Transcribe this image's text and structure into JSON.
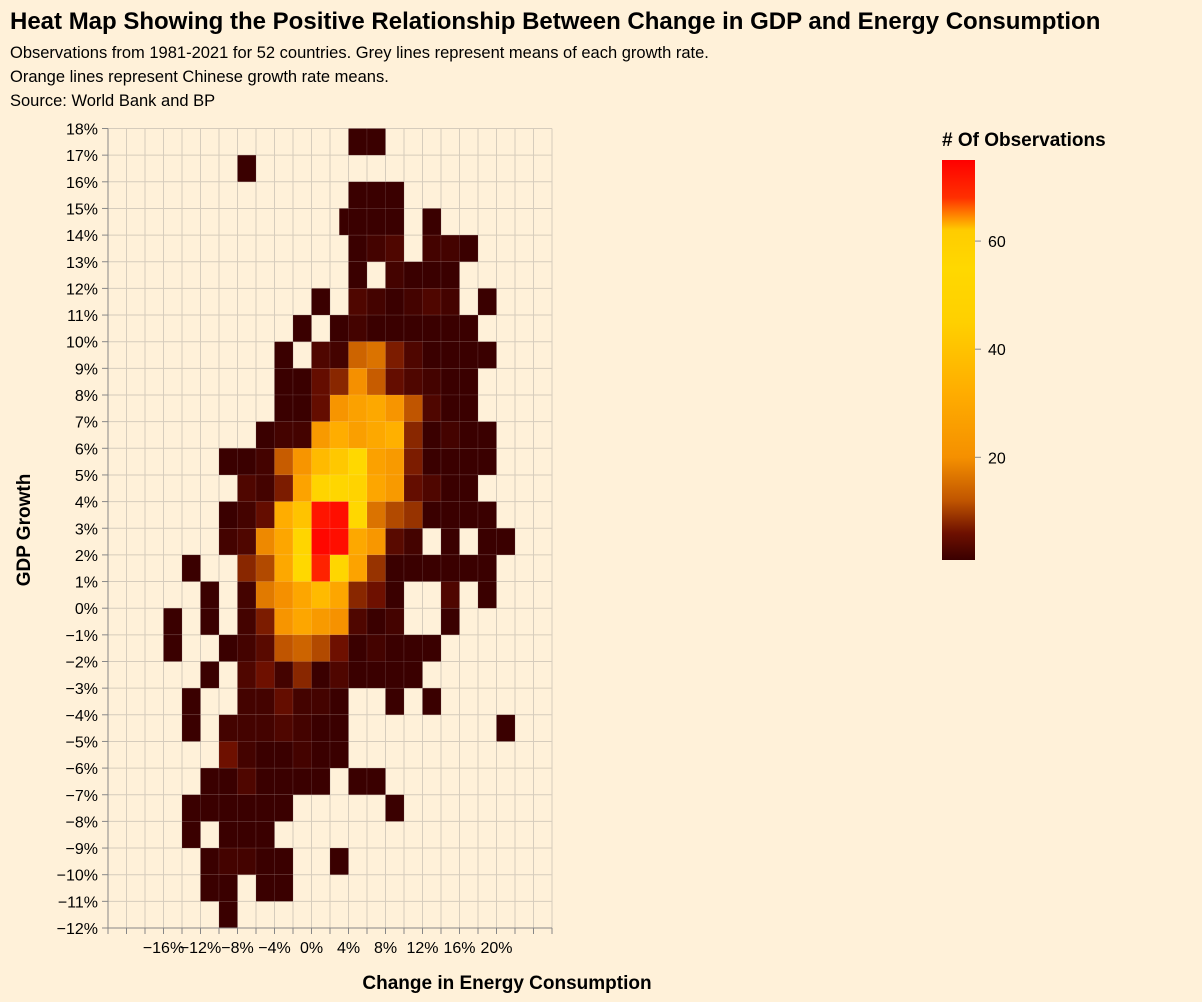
{
  "chart_data": {
    "type": "heatmap",
    "title": "Heat Map Showing the Positive Relationship Between Change in GDP and Energy Consumption",
    "subtitle": [
      "Observations from 1981-2021 for 52 countries. Grey lines represent means of each growth rate.",
      "Orange lines represent Chinese growth rate means.",
      "Source: World Bank and BP"
    ],
    "xlabel": "Change in Energy Consumption",
    "ylabel": "GDP Growth",
    "x_tick_labels": [
      "−16%",
      "−12%",
      "−8%",
      "−4%",
      "0%",
      "4%",
      "8%",
      "12%",
      "16%",
      "20%"
    ],
    "x_tick_values": [
      -16,
      -12,
      -8,
      -4,
      0,
      4,
      8,
      12,
      16,
      20
    ],
    "y_tick_labels": [
      "18%",
      "17%",
      "16%",
      "15%",
      "14%",
      "13%",
      "12%",
      "11%",
      "10%",
      "9%",
      "8%",
      "7%",
      "6%",
      "5%",
      "4%",
      "3%",
      "2%",
      "1%",
      "0%",
      "−1%",
      "−2%",
      "−3%",
      "−4%",
      "−5%",
      "−6%",
      "−7%",
      "−8%",
      "−9%",
      "−10%",
      "−11%",
      "−12%"
    ],
    "y_tick_values": [
      18,
      17,
      16,
      15,
      14,
      13,
      12,
      11,
      10,
      9,
      8,
      7,
      6,
      5,
      4,
      3,
      2,
      1,
      0,
      -1,
      -2,
      -3,
      -4,
      -5,
      -6,
      -7,
      -8,
      -9,
      -10,
      -11,
      -12
    ],
    "x_bin_width": 4,
    "y_bin_width": 1,
    "x_domain": [
      -22,
      26
    ],
    "y_domain": [
      -12,
      18
    ],
    "cells_format": "[x_bin_start, y_bin_start, count]",
    "cells": [
      [
        4,
        17,
        1
      ],
      [
        6,
        17,
        1
      ],
      [
        -8,
        16,
        1
      ],
      [
        4,
        15,
        1
      ],
      [
        6,
        15,
        1
      ],
      [
        8,
        15,
        1
      ],
      [
        3,
        14,
        1
      ],
      [
        4,
        14,
        1
      ],
      [
        6,
        14,
        1
      ],
      [
        8,
        14,
        1
      ],
      [
        12,
        14,
        1
      ],
      [
        4,
        13,
        1
      ],
      [
        6,
        13,
        2
      ],
      [
        8,
        13,
        3
      ],
      [
        12,
        13,
        2
      ],
      [
        14,
        13,
        2
      ],
      [
        16,
        13,
        1
      ],
      [
        4,
        12,
        1
      ],
      [
        8,
        12,
        2
      ],
      [
        10,
        12,
        1
      ],
      [
        12,
        12,
        1
      ],
      [
        14,
        12,
        1
      ],
      [
        0,
        11,
        1
      ],
      [
        4,
        11,
        3
      ],
      [
        6,
        11,
        2
      ],
      [
        8,
        11,
        1
      ],
      [
        10,
        11,
        2
      ],
      [
        12,
        11,
        3
      ],
      [
        14,
        11,
        2
      ],
      [
        18,
        11,
        1
      ],
      [
        -2,
        10,
        1
      ],
      [
        2,
        10,
        1
      ],
      [
        4,
        10,
        2
      ],
      [
        6,
        10,
        1
      ],
      [
        8,
        10,
        1
      ],
      [
        10,
        10,
        1
      ],
      [
        12,
        10,
        1
      ],
      [
        14,
        10,
        1
      ],
      [
        16,
        10,
        1
      ],
      [
        -4,
        9,
        1
      ],
      [
        0,
        9,
        3
      ],
      [
        2,
        9,
        2
      ],
      [
        4,
        9,
        14
      ],
      [
        6,
        9,
        16
      ],
      [
        8,
        9,
        7
      ],
      [
        10,
        9,
        3
      ],
      [
        12,
        9,
        1
      ],
      [
        14,
        9,
        1
      ],
      [
        16,
        9,
        1
      ],
      [
        18,
        9,
        1
      ],
      [
        -4,
        8,
        1
      ],
      [
        -2,
        8,
        1
      ],
      [
        0,
        8,
        5
      ],
      [
        2,
        8,
        8
      ],
      [
        4,
        8,
        20
      ],
      [
        6,
        8,
        13
      ],
      [
        8,
        8,
        5
      ],
      [
        10,
        8,
        3
      ],
      [
        12,
        8,
        2
      ],
      [
        14,
        8,
        1
      ],
      [
        16,
        8,
        1
      ],
      [
        -4,
        7,
        1
      ],
      [
        -2,
        7,
        1
      ],
      [
        0,
        7,
        5
      ],
      [
        2,
        7,
        22
      ],
      [
        4,
        7,
        27
      ],
      [
        6,
        7,
        30
      ],
      [
        8,
        7,
        22
      ],
      [
        10,
        7,
        12
      ],
      [
        12,
        7,
        3
      ],
      [
        14,
        7,
        1
      ],
      [
        16,
        7,
        1
      ],
      [
        -6,
        6,
        1
      ],
      [
        -4,
        6,
        2
      ],
      [
        -2,
        6,
        2
      ],
      [
        0,
        6,
        24
      ],
      [
        2,
        6,
        32
      ],
      [
        4,
        6,
        26
      ],
      [
        6,
        6,
        30
      ],
      [
        8,
        6,
        33
      ],
      [
        10,
        6,
        8
      ],
      [
        12,
        6,
        1
      ],
      [
        14,
        6,
        2
      ],
      [
        16,
        6,
        1
      ],
      [
        18,
        6,
        1
      ],
      [
        -10,
        5,
        1
      ],
      [
        -8,
        5,
        1
      ],
      [
        -6,
        5,
        2
      ],
      [
        -4,
        5,
        13
      ],
      [
        -2,
        5,
        22
      ],
      [
        0,
        5,
        37
      ],
      [
        2,
        5,
        42
      ],
      [
        4,
        5,
        55
      ],
      [
        6,
        5,
        27
      ],
      [
        8,
        5,
        24
      ],
      [
        10,
        5,
        7
      ],
      [
        12,
        5,
        1
      ],
      [
        14,
        5,
        1
      ],
      [
        16,
        5,
        1
      ],
      [
        18,
        5,
        1
      ],
      [
        -8,
        4,
        3
      ],
      [
        -6,
        4,
        2
      ],
      [
        -4,
        4,
        7
      ],
      [
        -2,
        4,
        28
      ],
      [
        0,
        4,
        50
      ],
      [
        2,
        4,
        53
      ],
      [
        4,
        4,
        58
      ],
      [
        6,
        4,
        29
      ],
      [
        8,
        4,
        24
      ],
      [
        10,
        4,
        5
      ],
      [
        12,
        4,
        3
      ],
      [
        14,
        4,
        1
      ],
      [
        16,
        4,
        1
      ],
      [
        -10,
        3,
        1
      ],
      [
        -8,
        3,
        2
      ],
      [
        -6,
        3,
        5
      ],
      [
        -4,
        3,
        32
      ],
      [
        -2,
        3,
        40
      ],
      [
        0,
        3,
        72
      ],
      [
        2,
        3,
        73
      ],
      [
        4,
        3,
        54
      ],
      [
        6,
        3,
        16
      ],
      [
        8,
        3,
        11
      ],
      [
        10,
        3,
        9
      ],
      [
        12,
        3,
        1
      ],
      [
        14,
        3,
        1
      ],
      [
        16,
        3,
        1
      ],
      [
        18,
        3,
        1
      ],
      [
        -10,
        2,
        2
      ],
      [
        -8,
        2,
        3
      ],
      [
        -6,
        2,
        19
      ],
      [
        -4,
        2,
        29
      ],
      [
        -2,
        2,
        51
      ],
      [
        0,
        2,
        74
      ],
      [
        2,
        2,
        73
      ],
      [
        4,
        2,
        30
      ],
      [
        6,
        2,
        23
      ],
      [
        8,
        2,
        4
      ],
      [
        10,
        2,
        2
      ],
      [
        14,
        2,
        1
      ],
      [
        18,
        2,
        1
      ],
      [
        20,
        2,
        1
      ],
      [
        -14,
        1,
        1
      ],
      [
        -8,
        1,
        8
      ],
      [
        -6,
        1,
        11
      ],
      [
        -4,
        1,
        30
      ],
      [
        -2,
        1,
        55
      ],
      [
        0,
        1,
        70
      ],
      [
        2,
        1,
        56
      ],
      [
        4,
        1,
        28
      ],
      [
        6,
        1,
        9
      ],
      [
        8,
        1,
        1
      ],
      [
        10,
        1,
        1
      ],
      [
        12,
        1,
        1
      ],
      [
        14,
        1,
        1
      ],
      [
        16,
        1,
        1
      ],
      [
        18,
        1,
        1
      ],
      [
        -12,
        0,
        1
      ],
      [
        -8,
        0,
        2
      ],
      [
        -6,
        0,
        17
      ],
      [
        -4,
        0,
        20
      ],
      [
        -2,
        0,
        29
      ],
      [
        0,
        0,
        37
      ],
      [
        2,
        0,
        29
      ],
      [
        4,
        0,
        8
      ],
      [
        6,
        0,
        6
      ],
      [
        8,
        0,
        1
      ],
      [
        14,
        0,
        3
      ],
      [
        18,
        0,
        1
      ],
      [
        -16,
        -1,
        1
      ],
      [
        -12,
        -1,
        1
      ],
      [
        -8,
        -1,
        2
      ],
      [
        -6,
        -1,
        7
      ],
      [
        -4,
        -1,
        22
      ],
      [
        -2,
        -1,
        29
      ],
      [
        0,
        -1,
        24
      ],
      [
        2,
        -1,
        21
      ],
      [
        4,
        -1,
        3
      ],
      [
        6,
        -1,
        1
      ],
      [
        8,
        -1,
        2
      ],
      [
        14,
        -1,
        1
      ],
      [
        -16,
        -2,
        1
      ],
      [
        -10,
        -2,
        1
      ],
      [
        -8,
        -2,
        2
      ],
      [
        -6,
        -2,
        4
      ],
      [
        -4,
        -2,
        12
      ],
      [
        -2,
        -2,
        14
      ],
      [
        0,
        -2,
        11
      ],
      [
        2,
        -2,
        6
      ],
      [
        4,
        -2,
        1
      ],
      [
        6,
        -2,
        2
      ],
      [
        8,
        -2,
        1
      ],
      [
        10,
        -2,
        1
      ],
      [
        12,
        -2,
        1
      ],
      [
        -12,
        -3,
        1
      ],
      [
        -8,
        -3,
        3
      ],
      [
        -6,
        -3,
        6
      ],
      [
        -4,
        -3,
        2
      ],
      [
        -2,
        -3,
        8
      ],
      [
        0,
        -3,
        1
      ],
      [
        2,
        -3,
        3
      ],
      [
        4,
        -3,
        1
      ],
      [
        6,
        -3,
        1
      ],
      [
        8,
        -3,
        1
      ],
      [
        10,
        -3,
        1
      ],
      [
        -14,
        -4,
        1
      ],
      [
        -8,
        -4,
        2
      ],
      [
        -6,
        -4,
        2
      ],
      [
        -4,
        -4,
        5
      ],
      [
        -2,
        -4,
        2
      ],
      [
        0,
        -4,
        2
      ],
      [
        2,
        -4,
        1
      ],
      [
        8,
        -4,
        1
      ],
      [
        12,
        -4,
        1
      ],
      [
        -14,
        -5,
        1
      ],
      [
        -10,
        -5,
        2
      ],
      [
        -8,
        -5,
        2
      ],
      [
        -6,
        -5,
        2
      ],
      [
        -4,
        -5,
        3
      ],
      [
        -2,
        -5,
        2
      ],
      [
        0,
        -5,
        1
      ],
      [
        2,
        -5,
        1
      ],
      [
        20,
        -5,
        1
      ],
      [
        -10,
        -6,
        6
      ],
      [
        -8,
        -6,
        2
      ],
      [
        -6,
        -6,
        1
      ],
      [
        -4,
        -6,
        1
      ],
      [
        -2,
        -6,
        2
      ],
      [
        0,
        -6,
        1
      ],
      [
        2,
        -6,
        1
      ],
      [
        -12,
        -7,
        1
      ],
      [
        -10,
        -7,
        1
      ],
      [
        -8,
        -7,
        3
      ],
      [
        -6,
        -7,
        1
      ],
      [
        -4,
        -7,
        1
      ],
      [
        -2,
        -7,
        1
      ],
      [
        0,
        -7,
        1
      ],
      [
        4,
        -7,
        1
      ],
      [
        6,
        -7,
        1
      ],
      [
        -14,
        -8,
        1
      ],
      [
        -12,
        -8,
        1
      ],
      [
        -10,
        -8,
        1
      ],
      [
        -8,
        -8,
        1
      ],
      [
        -6,
        -8,
        1
      ],
      [
        -4,
        -8,
        1
      ],
      [
        8,
        -8,
        1
      ],
      [
        -14,
        -9,
        1
      ],
      [
        -10,
        -9,
        1
      ],
      [
        -8,
        -9,
        1
      ],
      [
        -6,
        -9,
        1
      ],
      [
        -12,
        -10,
        1
      ],
      [
        -10,
        -10,
        2
      ],
      [
        -8,
        -10,
        2
      ],
      [
        -6,
        -10,
        1
      ],
      [
        -4,
        -10,
        1
      ],
      [
        2,
        -10,
        1
      ],
      [
        -12,
        -11,
        1
      ],
      [
        -10,
        -11,
        1
      ],
      [
        -6,
        -11,
        1
      ],
      [
        -4,
        -11,
        1
      ],
      [
        -10,
        -12,
        1
      ]
    ],
    "legend": {
      "title": "# Of Observations",
      "tick_labels": [
        "60",
        "40",
        "20"
      ],
      "tick_values": [
        60,
        40,
        20
      ],
      "domain": [
        1,
        75
      ],
      "placement": "right",
      "scheme": [
        "#3a0000",
        "#7a1500",
        "#ff9a00",
        "#ffd700",
        "#ff0000"
      ]
    },
    "grid": true,
    "colors": {
      "background": "#fff1d9",
      "grid": "#d6ccbc",
      "axis": "#888888"
    }
  }
}
